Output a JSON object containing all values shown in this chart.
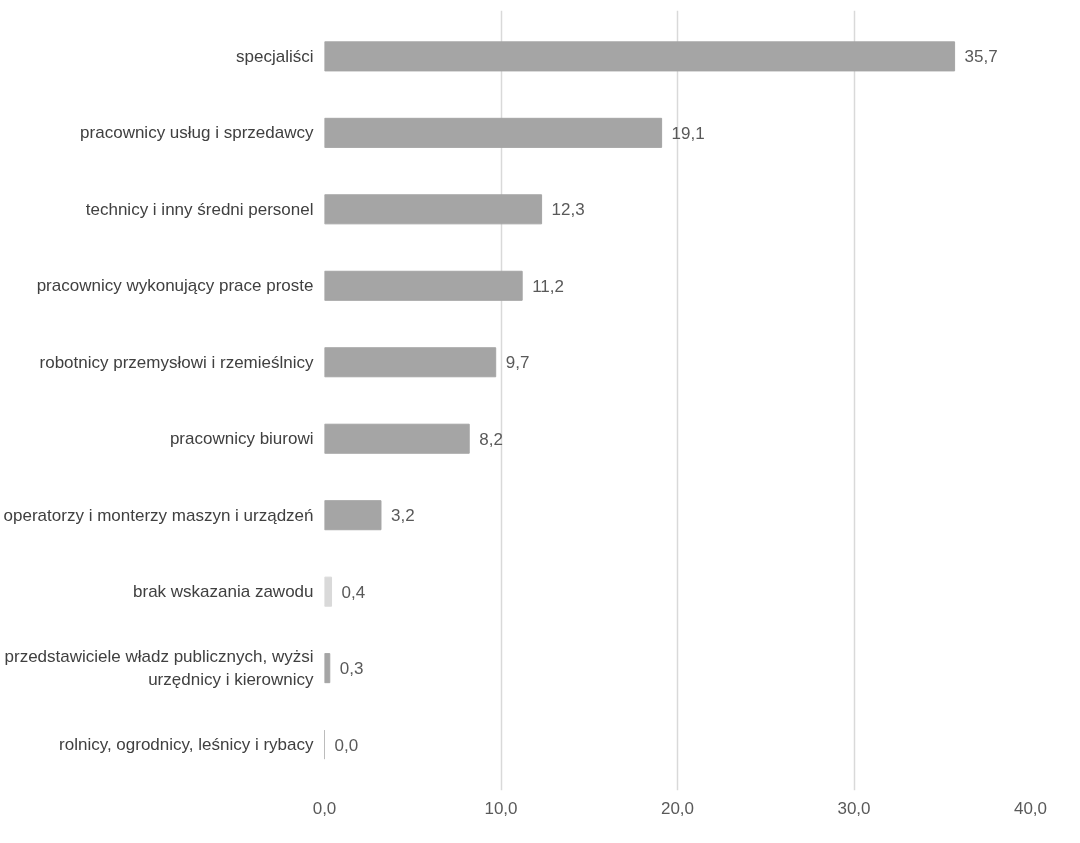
{
  "chart_data": {
    "type": "bar",
    "orientation": "horizontal",
    "categories": [
      "specjaliści",
      "pracownicy usług i sprzedawcy",
      "technicy i inny średni personel",
      "pracownicy wykonujący prace proste",
      "robotnicy przemysłowi i rzemieślnicy",
      "pracownicy biurowi",
      "operatorzy i monterzy maszyn i urządzeń",
      "brak wskazania zawodu",
      "przedstawiciele władz publicznych, wyżsi\nurzędnicy i kierownicy",
      "rolnicy, ogrodnicy, leśnicy i rybacy"
    ],
    "values": [
      35.7,
      19.1,
      12.3,
      11.2,
      9.7,
      8.2,
      3.2,
      0.4,
      0.3,
      0.0
    ],
    "value_labels": [
      "35,7",
      "19,1",
      "12,3",
      "11,2",
      "9,7",
      "8,2",
      "3,2",
      "0,4",
      "0,3",
      "0,0"
    ],
    "colors": [
      "#a5a5a5",
      "#a5a5a5",
      "#a5a5a5",
      "#a5a5a5",
      "#a5a5a5",
      "#a5a5a5",
      "#a5a5a5",
      "#d9d9d9",
      "#a5a5a5",
      "#a5a5a5"
    ],
    "xlim": [
      0,
      40
    ],
    "xticks": [
      {
        "value": 0,
        "label": "0,0"
      },
      {
        "value": 10,
        "label": "10,0"
      },
      {
        "value": 20,
        "label": "20,0"
      },
      {
        "value": 30,
        "label": "30,0"
      },
      {
        "value": 40,
        "label": "40,0"
      }
    ],
    "grid": "x"
  }
}
